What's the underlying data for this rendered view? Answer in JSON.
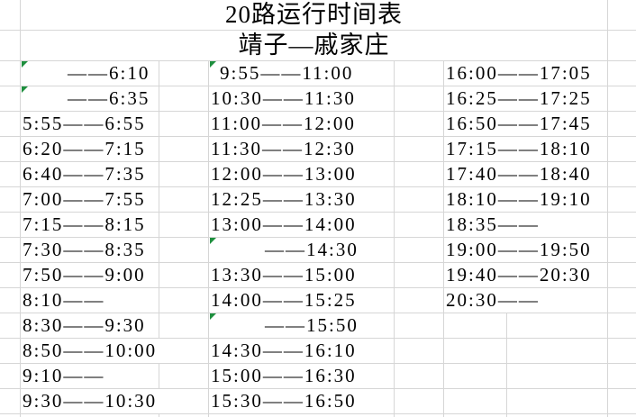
{
  "title": "20路运行时间表",
  "subtitle": "靖子—戚家庄",
  "colors": {
    "background": "#ffffff",
    "gridline": "#d6d6d6",
    "text": "#000000",
    "error_indicator": "#1e8f3e"
  },
  "schedule": {
    "rows": [
      {
        "col1": {
          "text": "——6:10",
          "indent": 50,
          "flag": true
        },
        "col2": {
          "text": "9:55——11:00",
          "indent": 10,
          "flag": true
        },
        "col3": {
          "text": "16:00——17:05"
        }
      },
      {
        "col1": {
          "text": "——6:35",
          "indent": 50,
          "flag": true
        },
        "col2": {
          "text": "10:30——11:30"
        },
        "col3": {
          "text": "16:25——17:25"
        }
      },
      {
        "col1": {
          "text": "5:55——6:55"
        },
        "col2": {
          "text": "11:00——12:00"
        },
        "col3": {
          "text": "16:50——17:45"
        }
      },
      {
        "col1": {
          "text": "6:20——7:15"
        },
        "col2": {
          "text": "11:30——12:30"
        },
        "col3": {
          "text": "17:15——18:10"
        }
      },
      {
        "col1": {
          "text": "6:40——7:35"
        },
        "col2": {
          "text": "12:00——13:00"
        },
        "col3": {
          "text": "17:40——18:40"
        }
      },
      {
        "col1": {
          "text": "7:00——7:55"
        },
        "col2": {
          "text": "12:25——13:30"
        },
        "col3": {
          "text": "18:10——19:10"
        }
      },
      {
        "col1": {
          "text": "7:15——8:15"
        },
        "col2": {
          "text": "13:00——14:00"
        },
        "col3": {
          "text": "18:35——"
        }
      },
      {
        "col1": {
          "text": "7:30——8:35"
        },
        "col2": {
          "text": "——14:30",
          "indent": 60,
          "flag": true
        },
        "col3": {
          "text": "19:00——19:50"
        }
      },
      {
        "col1": {
          "text": "7:50——9:00"
        },
        "col2": {
          "text": "13:30——15:00"
        },
        "col3": {
          "text": "19:40——20:30"
        }
      },
      {
        "col1": {
          "text": "8:10——"
        },
        "col2": {
          "text": "14:00——15:25"
        },
        "col3": {
          "text": "20:30——"
        }
      },
      {
        "col1": {
          "text": "8:30——9:30"
        },
        "col2": {
          "text": "——15:50",
          "indent": 60,
          "flag": true
        },
        "col3": null
      },
      {
        "col1": {
          "text": "8:50——10:00",
          "overflow": true
        },
        "col2": {
          "text": "14:30——16:10"
        },
        "col3": null
      },
      {
        "col1": {
          "text": "9:10——"
        },
        "col2": {
          "text": "15:00——16:30"
        },
        "col3": null
      },
      {
        "col1": {
          "text": "9:30——10:30",
          "overflow": true
        },
        "col2": {
          "text": "15:30——16:50"
        },
        "col3": null
      }
    ]
  }
}
